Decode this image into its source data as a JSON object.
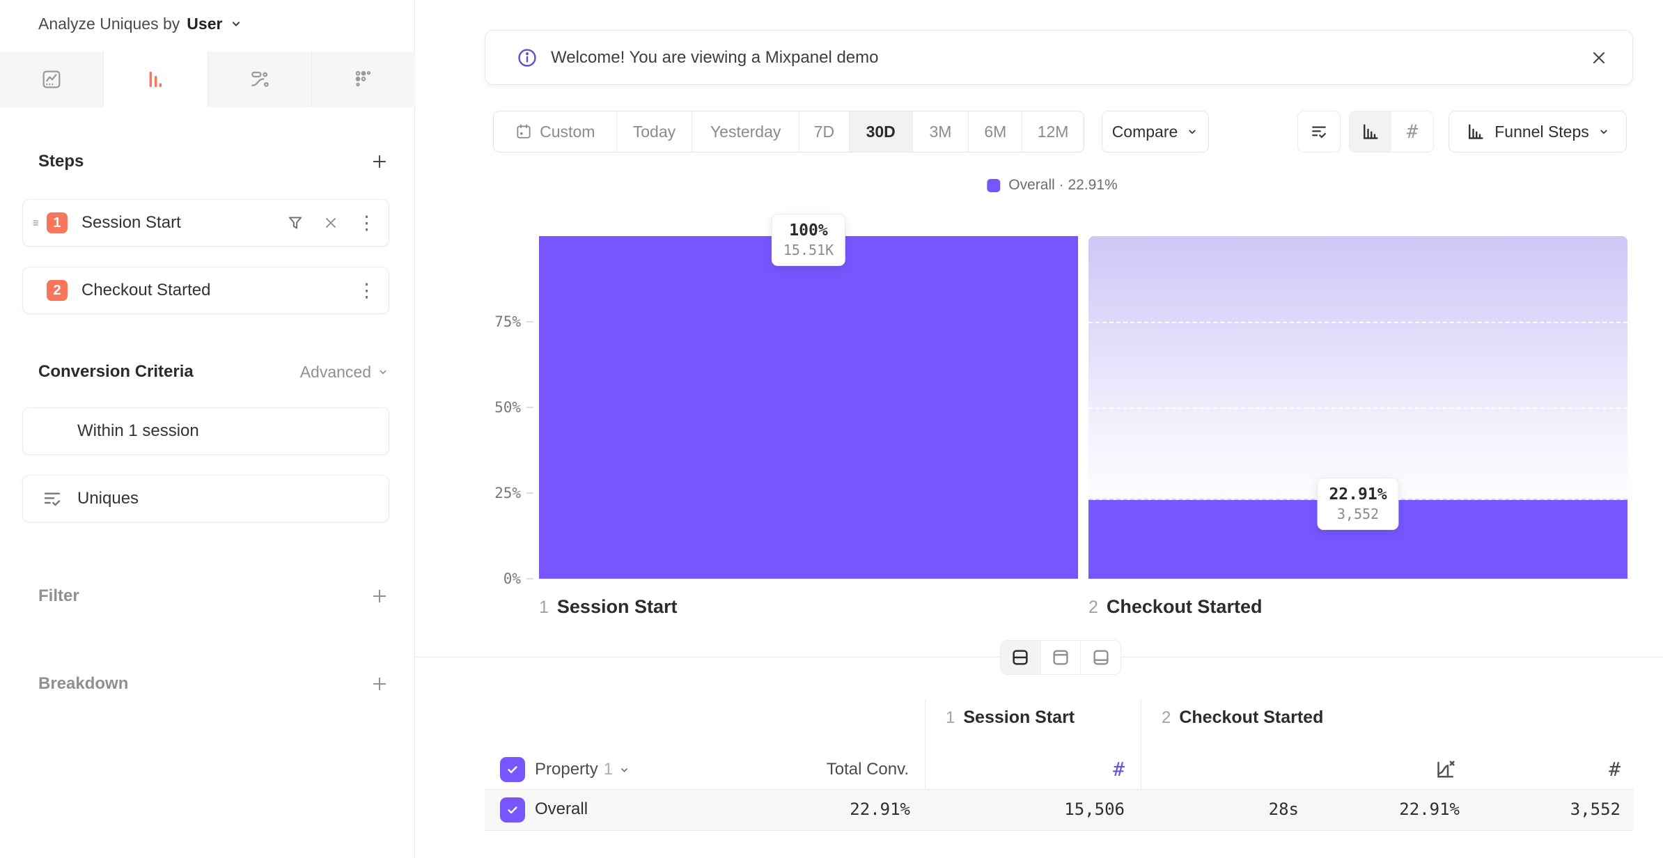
{
  "sidebar": {
    "analyze_label": "Analyze Uniques by",
    "analyze_value": "User",
    "tabs": [
      {
        "name": "insights"
      },
      {
        "name": "funnels",
        "active": true
      },
      {
        "name": "flows"
      },
      {
        "name": "retention"
      }
    ],
    "steps": {
      "title": "Steps",
      "items": [
        {
          "num": "1",
          "label": "Session Start"
        },
        {
          "num": "2",
          "label": "Checkout Started"
        }
      ]
    },
    "conversion": {
      "title": "Conversion Criteria",
      "advanced_label": "Advanced",
      "window_label": "Within 1 session",
      "count_label": "Uniques"
    },
    "filter_label": "Filter",
    "breakdown_label": "Breakdown"
  },
  "banner": {
    "message": "Welcome! You are viewing a Mixpanel demo"
  },
  "toolbar": {
    "date_ranges": [
      "Custom",
      "Today",
      "Yesterday",
      "7D",
      "30D",
      "3M",
      "6M",
      "12M"
    ],
    "active_range": "30D",
    "compare_label": "Compare",
    "view_label": "Funnel Steps"
  },
  "legend": {
    "series_label": "Overall · 22.91%",
    "swatch_color": "#7856ff"
  },
  "chart_data": {
    "type": "bar",
    "categories": [
      "Session Start",
      "Checkout Started"
    ],
    "steps": [
      {
        "num": "1",
        "label": "Session Start"
      },
      {
        "num": "2",
        "label": "Checkout Started"
      }
    ],
    "series": [
      {
        "name": "Overall",
        "values_pct": [
          100,
          22.91
        ],
        "counts": [
          15506,
          3552
        ]
      }
    ],
    "overall_conversion": "22.91%",
    "ylim": [
      0,
      100
    ],
    "yticks": [
      "0%",
      "25%",
      "50%",
      "75%"
    ],
    "grid": "dashed-on-lost-area",
    "legend_position": "top-center",
    "bar_color": "#7856ff",
    "tooltips": [
      {
        "pct": "100%",
        "count": "15.51K"
      },
      {
        "pct": "22.91%",
        "count": "3,552"
      }
    ]
  },
  "table": {
    "header": {
      "property_label": "Property",
      "property_index": "1",
      "total_conv_label": "Total Conv.",
      "step1": {
        "num": "1",
        "label": "Session Start"
      },
      "step2": {
        "num": "2",
        "label": "Checkout Started"
      }
    },
    "rows": [
      {
        "name": "Overall",
        "total_conv": "22.91%",
        "step1_count": "15,506",
        "avg_time": "28s",
        "step2_rate": "22.91%",
        "step2_count": "3,552"
      }
    ]
  }
}
